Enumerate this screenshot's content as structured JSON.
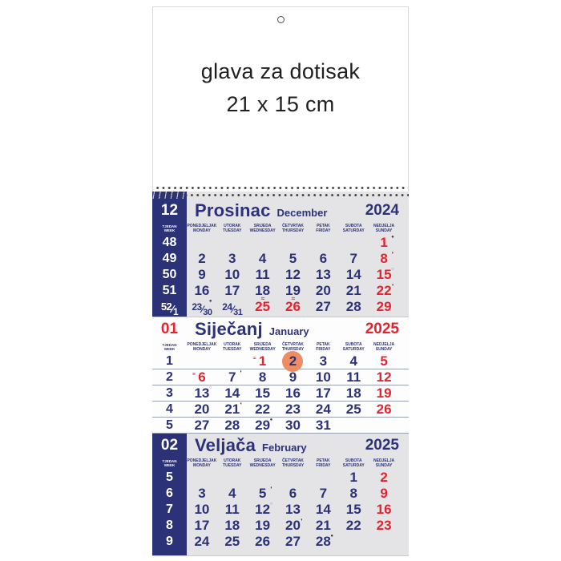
{
  "header_sheet": {
    "line1": "glava za dotisak",
    "line2": "21 x 15 cm"
  },
  "week_label": {
    "hr": "TJEDAN",
    "en": "WEEK"
  },
  "day_headers": [
    {
      "hr": "PONEDJELJAK",
      "en": "MONDAY"
    },
    {
      "hr": "UTORAK",
      "en": "TUESDAY"
    },
    {
      "hr": "SRIJEDA",
      "en": "WEDNESDAY"
    },
    {
      "hr": "ČETVRTAK",
      "en": "THURSDAY"
    },
    {
      "hr": "PETAK",
      "en": "FRIDAY"
    },
    {
      "hr": "SUBOTA",
      "en": "SATURDAY"
    },
    {
      "hr": "NEDJELJA",
      "en": "SUNDAY"
    }
  ],
  "moon_glyphs": {
    "new": "●",
    "first": "◗",
    "full": "○",
    "last": "◖"
  },
  "colors": {
    "blue": "#2c3277",
    "red": "#e5232e",
    "panel_gray": "#e4e4e6",
    "today_circle": "#ee8d64"
  },
  "months": [
    {
      "number": "12",
      "name_hr": "Prosinac",
      "name_en": "December",
      "year": "2024",
      "weeks": [
        {
          "week": "48",
          "days": [
            null,
            null,
            null,
            null,
            null,
            null,
            {
              "d": "1",
              "red": true,
              "moon": "new"
            }
          ]
        },
        {
          "week": "49",
          "days": [
            {
              "d": "2"
            },
            {
              "d": "3"
            },
            {
              "d": "4"
            },
            {
              "d": "5"
            },
            {
              "d": "6"
            },
            {
              "d": "7"
            },
            {
              "d": "8",
              "red": true,
              "moon": "first"
            }
          ]
        },
        {
          "week": "50",
          "days": [
            {
              "d": "9"
            },
            {
              "d": "10"
            },
            {
              "d": "11"
            },
            {
              "d": "12"
            },
            {
              "d": "13"
            },
            {
              "d": "14"
            },
            {
              "d": "15",
              "red": true,
              "moon": "full"
            }
          ]
        },
        {
          "week": "51",
          "days": [
            {
              "d": "16"
            },
            {
              "d": "17"
            },
            {
              "d": "18"
            },
            {
              "d": "19"
            },
            {
              "d": "20"
            },
            {
              "d": "21"
            },
            {
              "d": "22",
              "red": true,
              "moon": "last"
            }
          ]
        },
        {
          "week": "52",
          "week2": "1",
          "days": [
            {
              "d": "23",
              "d2": "30",
              "moon": "new"
            },
            {
              "d": "24",
              "d2": "31"
            },
            {
              "d": "25",
              "red": true,
              "mark_above": "≈"
            },
            {
              "d": "26",
              "red": true,
              "mark_above": "≈"
            },
            {
              "d": "27"
            },
            {
              "d": "28"
            },
            {
              "d": "29",
              "red": true
            }
          ]
        }
      ]
    },
    {
      "number": "01",
      "name_hr": "Siječanj",
      "name_en": "January",
      "year": "2025",
      "weeks": [
        {
          "week": "1",
          "days": [
            null,
            null,
            {
              "d": "1",
              "red": true,
              "mark_before": "≈"
            },
            {
              "d": "2",
              "today": true
            },
            {
              "d": "3"
            },
            {
              "d": "4"
            },
            {
              "d": "5",
              "red": true
            }
          ]
        },
        {
          "week": "2",
          "days": [
            {
              "d": "6",
              "red": true,
              "mark_before": "≡"
            },
            {
              "d": "7",
              "moon": "first"
            },
            {
              "d": "8"
            },
            {
              "d": "9"
            },
            {
              "d": "10"
            },
            {
              "d": "11"
            },
            {
              "d": "12",
              "red": true
            }
          ]
        },
        {
          "week": "3",
          "days": [
            {
              "d": "13",
              "moon": "full"
            },
            {
              "d": "14"
            },
            {
              "d": "15"
            },
            {
              "d": "16"
            },
            {
              "d": "17"
            },
            {
              "d": "18"
            },
            {
              "d": "19",
              "red": true
            }
          ]
        },
        {
          "week": "4",
          "days": [
            {
              "d": "20"
            },
            {
              "d": "21",
              "moon": "last"
            },
            {
              "d": "22"
            },
            {
              "d": "23"
            },
            {
              "d": "24"
            },
            {
              "d": "25"
            },
            {
              "d": "26",
              "red": true
            }
          ]
        },
        {
          "week": "5",
          "days": [
            {
              "d": "27"
            },
            {
              "d": "28"
            },
            {
              "d": "29",
              "moon": "new"
            },
            {
              "d": "30"
            },
            {
              "d": "31"
            },
            null,
            null
          ]
        }
      ]
    },
    {
      "number": "02",
      "name_hr": "Veljača",
      "name_en": "February",
      "year": "2025",
      "weeks": [
        {
          "week": "5",
          "days": [
            null,
            null,
            null,
            null,
            null,
            {
              "d": "1"
            },
            {
              "d": "2",
              "red": true
            }
          ]
        },
        {
          "week": "6",
          "days": [
            {
              "d": "3"
            },
            {
              "d": "4"
            },
            {
              "d": "5",
              "moon": "first"
            },
            {
              "d": "6"
            },
            {
              "d": "7"
            },
            {
              "d": "8"
            },
            {
              "d": "9",
              "red": true
            }
          ]
        },
        {
          "week": "7",
          "days": [
            {
              "d": "10"
            },
            {
              "d": "11"
            },
            {
              "d": "12",
              "moon": "full"
            },
            {
              "d": "13"
            },
            {
              "d": "14"
            },
            {
              "d": "15"
            },
            {
              "d": "16",
              "red": true
            }
          ]
        },
        {
          "week": "8",
          "days": [
            {
              "d": "17"
            },
            {
              "d": "18"
            },
            {
              "d": "19"
            },
            {
              "d": "20",
              "moon": "last"
            },
            {
              "d": "21"
            },
            {
              "d": "22"
            },
            {
              "d": "23",
              "red": true
            }
          ]
        },
        {
          "week": "9",
          "days": [
            {
              "d": "24"
            },
            {
              "d": "25"
            },
            {
              "d": "26"
            },
            {
              "d": "27"
            },
            {
              "d": "28",
              "moon": "new"
            },
            null,
            null
          ]
        }
      ]
    }
  ]
}
